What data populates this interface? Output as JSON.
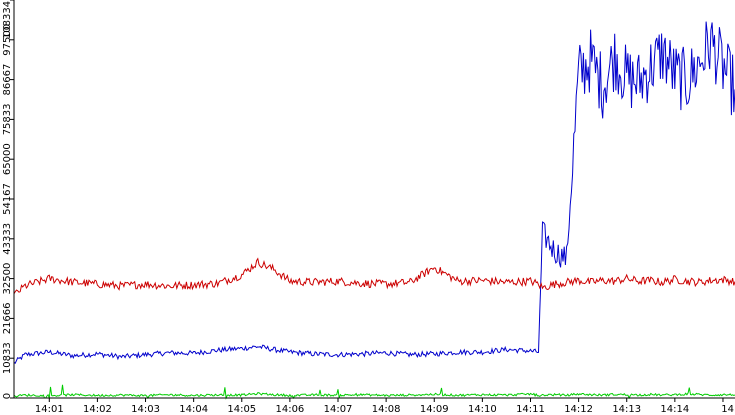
{
  "chart_data": {
    "type": "line",
    "title": "",
    "xlabel": "",
    "ylabel": "",
    "grid": false,
    "legend": "none",
    "ylim": [
      0,
      108334
    ],
    "xlim": [
      "14:00:16",
      "14:15:15"
    ],
    "y_ticks": [
      "0",
      "10833",
      "21666",
      "32500",
      "43333",
      "54167",
      "65000",
      "75833",
      "86667",
      "97500",
      "108334"
    ],
    "x_ticks": [
      "14:01",
      "14:02",
      "14:03",
      "14:04",
      "14:05",
      "14:06",
      "14:07",
      "14:08",
      "14:09",
      "14:10",
      "14:11",
      "14:12",
      "14:13",
      "14:14",
      "14"
    ],
    "series": [
      {
        "color": "#0000cc",
        "x": [
          "14:00:16",
          "14:00:30",
          "14:01:00",
          "14:01:30",
          "14:02:00",
          "14:02:30",
          "14:03:00",
          "14:03:30",
          "14:04:00",
          "14:04:30",
          "14:05:00",
          "14:05:20",
          "14:05:40",
          "14:06:00",
          "14:06:30",
          "14:07:00",
          "14:07:30",
          "14:08:00",
          "14:08:30",
          "14:09:00",
          "14:09:30",
          "14:10:00",
          "14:10:30",
          "14:11:00",
          "14:11:10",
          "14:11:15",
          "14:11:30",
          "14:11:45",
          "14:12:00",
          "14:12:15",
          "14:12:30",
          "14:12:45",
          "14:13:00",
          "14:13:15",
          "14:13:30",
          "14:13:45",
          "14:14:00",
          "14:14:15",
          "14:14:30",
          "14:14:45",
          "14:15:00",
          "14:15:15"
        ],
        "y": [
          9500,
          11800,
          12500,
          11500,
          12000,
          11200,
          11800,
          12300,
          12200,
          13000,
          13500,
          14000,
          13200,
          12500,
          12000,
          11800,
          12000,
          12300,
          11800,
          12000,
          12500,
          12500,
          13200,
          12800,
          12500,
          45000,
          40000,
          38000,
          88000,
          92000,
          85000,
          93000,
          87000,
          86000,
          90000,
          94000,
          88000,
          86000,
          91000,
          97000,
          90000,
          84000
        ]
      },
      {
        "color": "#cc0000",
        "x": [
          "14:00:16",
          "14:00:30",
          "14:01:00",
          "14:01:30",
          "14:02:00",
          "14:02:30",
          "14:03:00",
          "14:03:30",
          "14:04:00",
          "14:04:30",
          "14:05:00",
          "14:05:20",
          "14:05:40",
          "14:06:00",
          "14:06:30",
          "14:07:00",
          "14:07:30",
          "14:08:00",
          "14:08:30",
          "14:09:00",
          "14:09:30",
          "14:10:00",
          "14:10:30",
          "14:11:00",
          "14:11:10",
          "14:11:15",
          "14:11:30",
          "14:11:45",
          "14:12:00",
          "14:12:15",
          "14:12:30",
          "14:12:45",
          "14:13:00",
          "14:13:15",
          "14:13:30",
          "14:13:45",
          "14:14:00",
          "14:14:15",
          "14:14:30",
          "14:14:45",
          "14:15:00",
          "14:15:15"
        ],
        "y": [
          28000,
          30500,
          32500,
          31500,
          31000,
          30500,
          31000,
          30500,
          30800,
          31200,
          33500,
          37000,
          35000,
          31800,
          31500,
          31800,
          31200,
          31000,
          31500,
          35500,
          31800,
          32000,
          31500,
          31800,
          31000,
          30000,
          31000,
          31500,
          32000,
          31500,
          32000,
          31800,
          32500,
          31800,
          32000,
          31500,
          32300,
          31800,
          31500,
          32000,
          32200,
          31700
        ]
      },
      {
        "color": "#00cc00",
        "x": [
          "14:00:16",
          "14:00:30",
          "14:01:00",
          "14:01:30",
          "14:02:00",
          "14:02:30",
          "14:03:00",
          "14:03:30",
          "14:04:00",
          "14:04:30",
          "14:05:00",
          "14:05:20",
          "14:05:40",
          "14:06:00",
          "14:06:30",
          "14:07:00",
          "14:07:30",
          "14:08:00",
          "14:08:30",
          "14:09:00",
          "14:09:30",
          "14:10:00",
          "14:10:30",
          "14:11:00",
          "14:11:10",
          "14:11:15",
          "14:11:30",
          "14:11:45",
          "14:12:00",
          "14:12:15",
          "14:12:30",
          "14:12:45",
          "14:13:00",
          "14:13:15",
          "14:13:30",
          "14:13:45",
          "14:14:00",
          "14:14:15",
          "14:14:30",
          "14:14:45",
          "14:15:00",
          "14:15:15"
        ],
        "y": [
          500,
          800,
          600,
          900,
          700,
          800,
          650,
          900,
          700,
          850,
          800,
          1200,
          900,
          700,
          850,
          750,
          900,
          700,
          800,
          1000,
          750,
          900,
          800,
          1100,
          700,
          800,
          900,
          750,
          1100,
          900,
          800,
          1000,
          900,
          850,
          950,
          800,
          900,
          1100,
          950,
          800,
          900,
          850
        ]
      }
    ]
  }
}
